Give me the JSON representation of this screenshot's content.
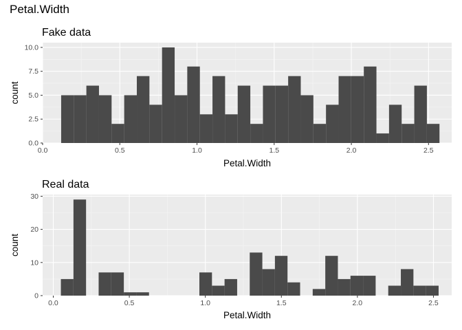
{
  "page": {
    "title": "Petal.Width"
  },
  "chart_data": [
    {
      "type": "bar",
      "title": "Fake data",
      "xlabel": "Petal.Width",
      "ylabel": "count",
      "xlim": [
        0,
        2.65
      ],
      "ylim": [
        0,
        10.5
      ],
      "xticks": [
        "0.0",
        "0.5",
        "1.0",
        "1.5",
        "2.0",
        "2.5"
      ],
      "yticks": [
        "0.0",
        "2.5",
        "5.0",
        "7.5",
        "10.0"
      ],
      "bins": {
        "start": 0.12,
        "width": 0.0817,
        "values": [
          5,
          5,
          6,
          5,
          2,
          5,
          7,
          4,
          10,
          5,
          8,
          3,
          7,
          3,
          6,
          2,
          6,
          6,
          7,
          5,
          2,
          4,
          7,
          7,
          8,
          1,
          4,
          2,
          6,
          2
        ]
      },
      "grid": true,
      "color": "#4a4a4a"
    },
    {
      "type": "bar",
      "title": "Real data",
      "xlabel": "Petal.Width",
      "ylabel": "count",
      "xlim": [
        -0.07,
        2.62
      ],
      "ylim": [
        0,
        30.5
      ],
      "xticks": [
        "0.0",
        "0.5",
        "1.0",
        "1.5",
        "2.0",
        "2.5"
      ],
      "yticks": [
        "0",
        "10",
        "20",
        "30"
      ],
      "bins": {
        "start": 0.05,
        "width": 0.0828,
        "values": [
          5,
          29,
          0,
          7,
          7,
          1,
          1,
          0,
          0,
          0,
          0,
          7,
          3,
          5,
          0,
          13,
          8,
          12,
          4,
          0,
          2,
          12,
          5,
          6,
          6,
          0,
          3,
          8,
          3,
          3
        ]
      },
      "grid": true,
      "color": "#4a4a4a"
    }
  ]
}
